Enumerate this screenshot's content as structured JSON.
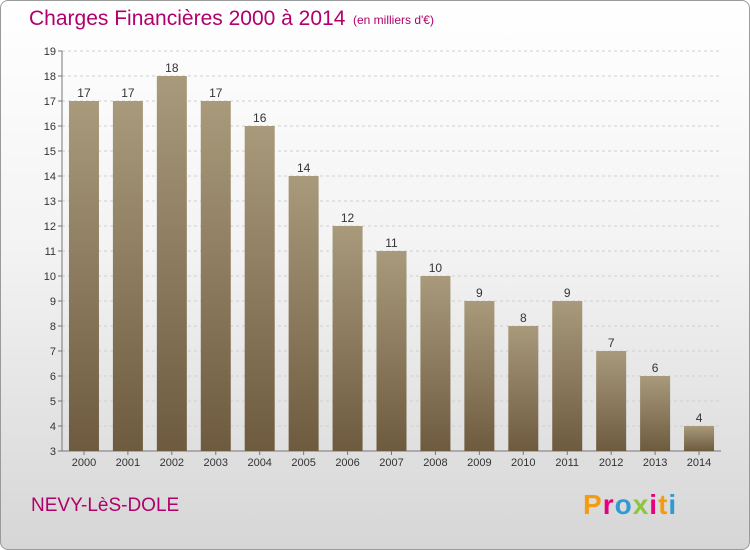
{
  "header": {
    "title": "Charges Financières 2000 à 2014",
    "subtitle": "(en milliers d'€)"
  },
  "footer": {
    "commune": "NEVY-LèS-DOLE",
    "logo_letters": [
      "P",
      "r",
      "o",
      "x",
      "i",
      "t",
      "i"
    ],
    "logo_colors": [
      "#f39c12",
      "#e6007e",
      "#2e9bd6",
      "#8cc63f",
      "#e6007e",
      "#f39c12",
      "#2e9bd6"
    ]
  },
  "colors": {
    "accent": "#b0006b",
    "bar_top": "#a99a7c",
    "bar_bottom": "#6e5b3f"
  },
  "chart_data": {
    "type": "bar",
    "title": "Charges Financières 2000 à 2014",
    "subtitle": "(en milliers d'€)",
    "categories": [
      "2000",
      "2001",
      "2002",
      "2003",
      "2004",
      "2005",
      "2006",
      "2007",
      "2008",
      "2009",
      "2010",
      "2011",
      "2012",
      "2013",
      "2014"
    ],
    "values": [
      17,
      17,
      18,
      17,
      16,
      14,
      12,
      11,
      10,
      9,
      8,
      9,
      7,
      6,
      4
    ],
    "ylim": [
      3,
      19
    ],
    "yticks": [
      3,
      4,
      5,
      6,
      7,
      8,
      9,
      10,
      11,
      12,
      13,
      14,
      15,
      16,
      17,
      18,
      19
    ],
    "grid": true,
    "xlabel": "",
    "ylabel": ""
  }
}
